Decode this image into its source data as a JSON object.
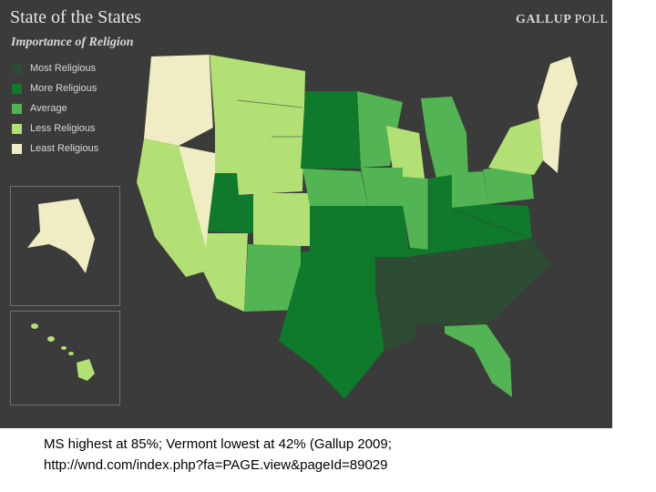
{
  "header": {
    "title": "State of the States",
    "subtitle": "Importance of Religion",
    "brand": "GALLUP",
    "brand_accent": "POLL"
  },
  "legend": [
    {
      "label": "Most Religious",
      "color": "#2d4c33"
    },
    {
      "label": "More Religious",
      "color": "#0f7a2b"
    },
    {
      "label": "Average",
      "color": "#52b452"
    },
    {
      "label": "Less Religious",
      "color": "#b3e074"
    },
    {
      "label": "Least Religious",
      "color": "#f0ecc3"
    }
  ],
  "regions": {
    "pacific_nw_least": {
      "category": "Least Religious"
    },
    "north_less": {
      "category": "Less Religious"
    },
    "california_less": {
      "category": "Less Religious"
    },
    "nevada_least": {
      "category": "Least Religious"
    },
    "utah_more": {
      "category": "More Religious"
    },
    "colorado_less": {
      "category": "Less Religious"
    },
    "arizona_less": {
      "category": "Less Religious"
    },
    "new_mexico_avg": {
      "category": "Average"
    },
    "dakotas_more": {
      "category": "More Religious"
    },
    "nebraska_avg": {
      "category": "Average"
    },
    "kansas_more": {
      "category": "More Religious"
    },
    "oklahoma_more": {
      "category": "More Religious"
    },
    "texas_more": {
      "category": "More Religious"
    },
    "minnesota_avg": {
      "category": "Average"
    },
    "wisconsin_less": {
      "category": "Less Religious"
    },
    "michigan_avg": {
      "category": "Average"
    },
    "iowa_avg": {
      "category": "Average"
    },
    "illinois_avg": {
      "category": "Average"
    },
    "missouri_more": {
      "category": "More Religious"
    },
    "ohio_valley_more": {
      "category": "More Religious"
    },
    "ohio_avg": {
      "category": "Average"
    },
    "penn_avg": {
      "category": "Average"
    },
    "south_most": {
      "category": "Most Religious"
    },
    "florida_avg": {
      "category": "Average"
    },
    "new_york_less": {
      "category": "Less Religious"
    },
    "new_england_least": {
      "category": "Least Religious"
    },
    "alaska_least": {
      "category": "Least Religious"
    },
    "hawaii_less": {
      "category": "Less Religious"
    }
  },
  "caption": {
    "line1": "MS highest at 85%; Vermont lowest at 42% (Gallup 2009;",
    "line2": "http://wnd.com/index.php?fa=PAGE.view&pageId=89029"
  }
}
